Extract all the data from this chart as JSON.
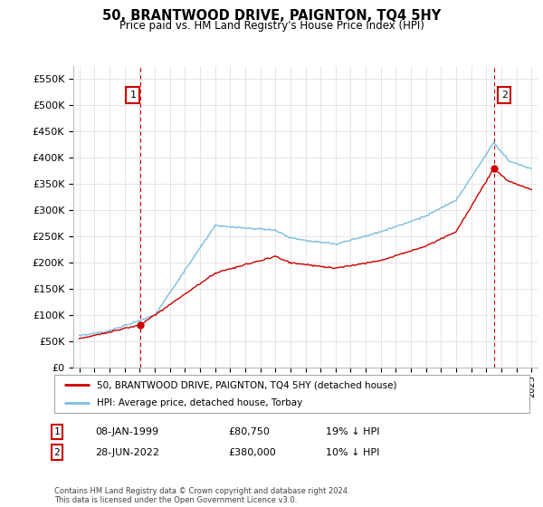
{
  "title": "50, BRANTWOOD DRIVE, PAIGNTON, TQ4 5HY",
  "subtitle": "Price paid vs. HM Land Registry's House Price Index (HPI)",
  "ylim": [
    0,
    575000
  ],
  "yticks": [
    0,
    50000,
    100000,
    150000,
    200000,
    250000,
    300000,
    350000,
    400000,
    450000,
    500000,
    550000
  ],
  "ytick_labels": [
    "£0",
    "£50K",
    "£100K",
    "£150K",
    "£200K",
    "£250K",
    "£300K",
    "£350K",
    "£400K",
    "£450K",
    "£500K",
    "£550K"
  ],
  "hpi_color": "#7bbde0",
  "price_color": "#cc0000",
  "dashed_vline_color": "#cc0000",
  "point1_label": "1",
  "point1_date": "08-JAN-1999",
  "point1_price": 80750,
  "point1_x": 1999.04,
  "point2_label": "2",
  "point2_date": "28-JUN-2022",
  "point2_price": 380000,
  "point2_x": 2022.49,
  "legend_line1": "50, BRANTWOOD DRIVE, PAIGNTON, TQ4 5HY (detached house)",
  "legend_line2": "HPI: Average price, detached house, Torbay",
  "table_row1": [
    "1",
    "08-JAN-1999",
    "£80,750",
    "19% ↓ HPI"
  ],
  "table_row2": [
    "2",
    "28-JUN-2022",
    "£380,000",
    "10% ↓ HPI"
  ],
  "footnote": "Contains HM Land Registry data © Crown copyright and database right 2024.\nThis data is licensed under the Open Government Licence v3.0.",
  "bg_color": "#ffffff",
  "grid_color": "#e0e0e0",
  "xlim_left": 1994.6,
  "xlim_right": 2025.4
}
